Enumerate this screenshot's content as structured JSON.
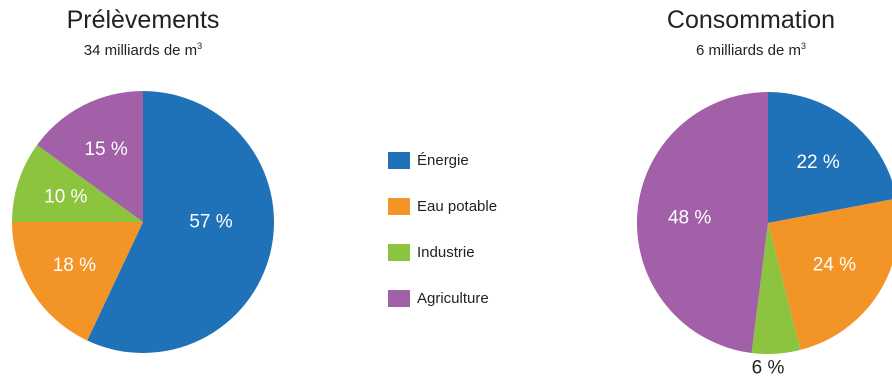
{
  "chart_data": [
    {
      "type": "pie",
      "title": "Prélèvements",
      "subtitle": "34 milliards de m",
      "subtitle_sup": "3",
      "slices": [
        {
          "category": "Énergie",
          "value": 57,
          "label": "57 %"
        },
        {
          "category": "Eau potable",
          "value": 18,
          "label": "18 %"
        },
        {
          "category": "Industrie",
          "value": 10,
          "label": "10 %"
        },
        {
          "category": "Agriculture",
          "value": 15,
          "label": "15 %"
        }
      ]
    },
    {
      "type": "pie",
      "title": "Consommation",
      "subtitle": "6 milliards de m",
      "subtitle_sup": "3",
      "slices": [
        {
          "category": "Énergie",
          "value": 22,
          "label": "22 %"
        },
        {
          "category": "Eau potable",
          "value": 24,
          "label": "24 %"
        },
        {
          "category": "Industrie",
          "value": 6,
          "label": "6 %"
        },
        {
          "category": "Agriculture",
          "value": 48,
          "label": "48 %"
        }
      ]
    }
  ],
  "legend": [
    {
      "label": "Énergie",
      "color": "#1f72b8"
    },
    {
      "label": "Eau potable",
      "color": "#f39426"
    },
    {
      "label": "Industrie",
      "color": "#8cc43f"
    },
    {
      "label": "Agriculture",
      "color": "#a160a8"
    }
  ]
}
